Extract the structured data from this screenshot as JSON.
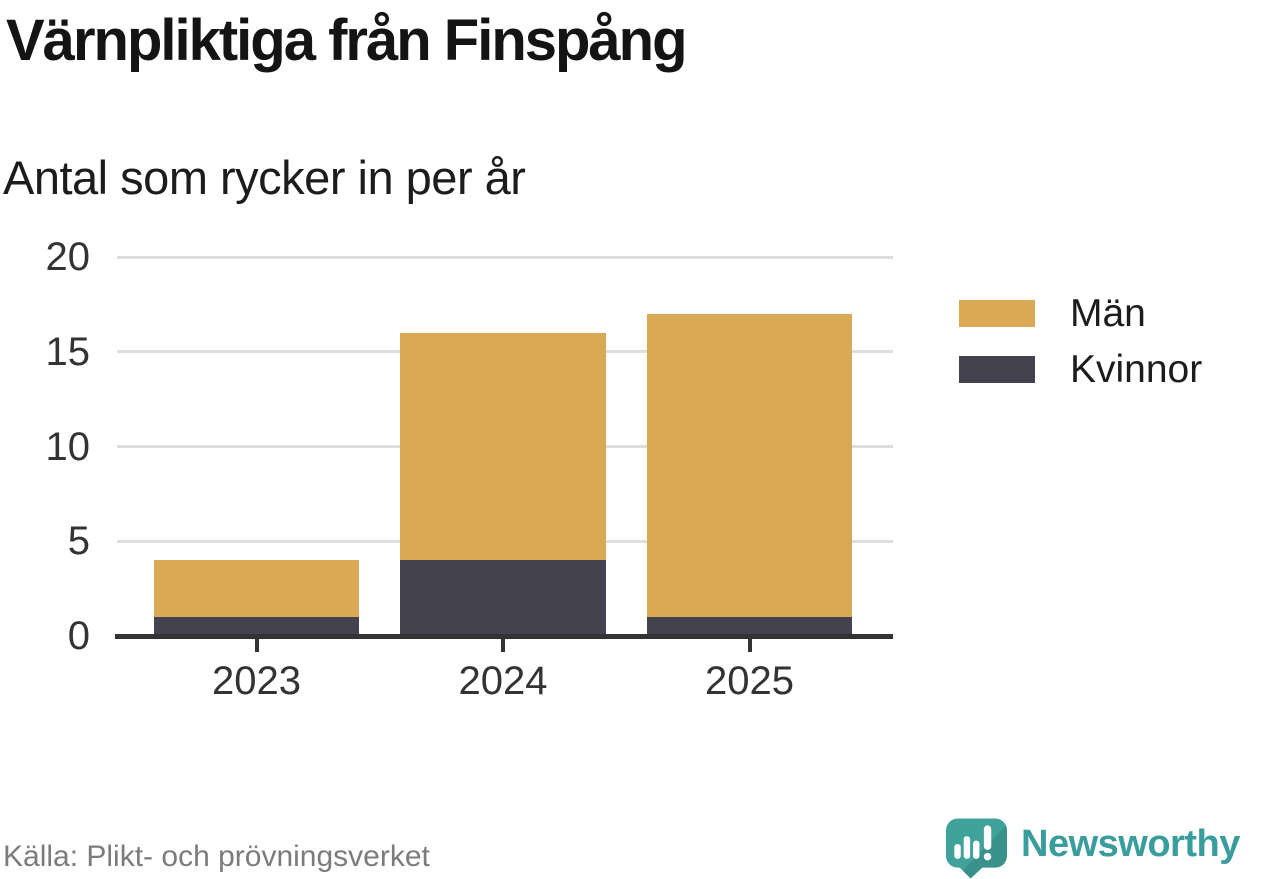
{
  "header": {
    "title": "Värnpliktiga från Finspång",
    "subtitle": "Antal som rycker in per år"
  },
  "chart_data": {
    "type": "bar",
    "stacked": true,
    "title": "Värnpliktiga från Finspång",
    "subtitle": "Antal som rycker in per år",
    "categories": [
      "2023",
      "2024",
      "2025"
    ],
    "series": [
      {
        "name": "Män",
        "color": "#d9a956",
        "values": [
          3,
          12,
          16
        ]
      },
      {
        "name": "Kvinnor",
        "color": "#454250",
        "values": [
          1,
          4,
          1
        ]
      }
    ],
    "stack_order_bottom_to_top": [
      "Kvinnor",
      "Män"
    ],
    "xlabel": "",
    "ylabel": "",
    "ylim": [
      0,
      20
    ],
    "yticks": [
      0,
      5,
      10,
      15,
      20
    ],
    "grid": "horizontal",
    "legend_position": "right"
  },
  "legend": {
    "items": [
      {
        "label": "Män",
        "color": "#d9a956"
      },
      {
        "label": "Kvinnor",
        "color": "#454250"
      }
    ]
  },
  "footer": {
    "source": "Källa: Plikt- och prövningsverket",
    "brand": "Newsworthy"
  },
  "colors": {
    "background": "#ffffff",
    "axis": "#333333",
    "gridline": "#dedede",
    "tick_label": "#333333",
    "men": "#d9a956",
    "women": "#454250",
    "brand_teal": "#3a9d9d"
  }
}
